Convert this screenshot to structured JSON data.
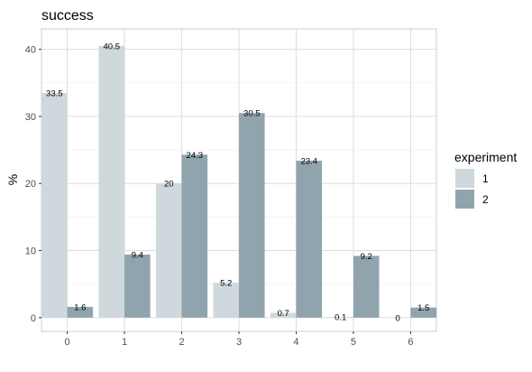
{
  "chart_data": {
    "type": "bar",
    "title": "success",
    "xlabel": "",
    "ylabel": "%",
    "categories": [
      "0",
      "1",
      "2",
      "3",
      "4",
      "5",
      "6"
    ],
    "ylim": [
      -2.05,
      43.05
    ],
    "yticks": [
      0,
      10,
      20,
      30,
      40
    ],
    "grid": true,
    "legend_position": "right",
    "legend_title": "experiment",
    "series": [
      {
        "name": "1",
        "color": "#cfd8dc",
        "values": [
          33.5,
          40.5,
          20,
          5.2,
          0.7,
          0.1,
          0
        ]
      },
      {
        "name": "2",
        "color": "#90a4ae",
        "values": [
          1.6,
          9.4,
          24.3,
          30.5,
          23.4,
          9.2,
          1.5
        ]
      }
    ],
    "data_labels": [
      [
        "33.5",
        "40.5",
        "20",
        "5.2",
        "0.7",
        "0.1",
        "0"
      ],
      [
        "1.6",
        "9.4",
        "24.3",
        "30.5",
        "23.4",
        "9.2",
        "1.5"
      ]
    ]
  }
}
